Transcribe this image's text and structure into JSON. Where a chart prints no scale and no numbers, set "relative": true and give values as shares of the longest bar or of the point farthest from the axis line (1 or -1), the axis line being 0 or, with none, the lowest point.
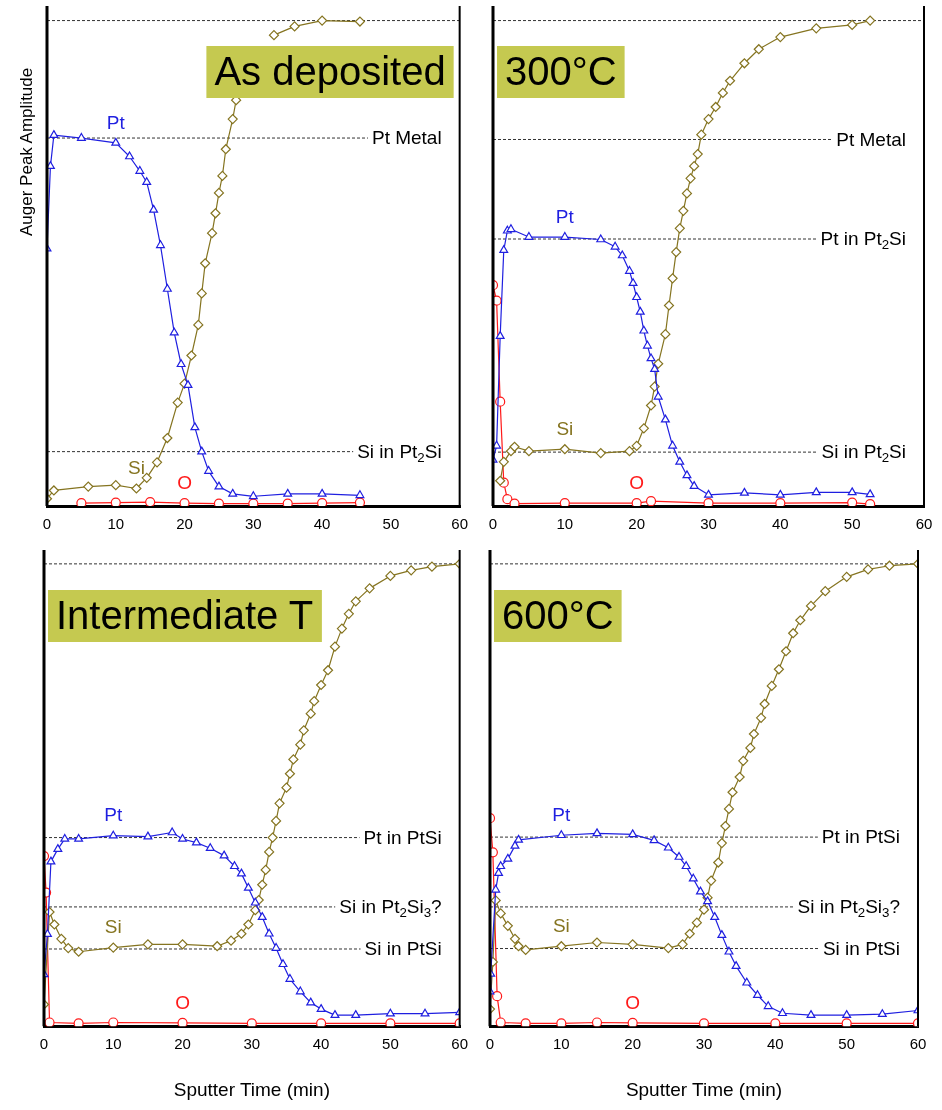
{
  "chart_data": [
    {
      "type": "line",
      "title": "As deposited",
      "ylabel": "Auger Peak Amplitude",
      "relative": true,
      "xlim": [
        0,
        60
      ],
      "xticks": [
        0,
        10,
        20,
        30,
        40,
        50,
        60
      ],
      "tick_labels": "x",
      "grid": false,
      "legend": false,
      "series": [
        {
          "name": "Pt",
          "color": "#1f1fe0",
          "marker": "triangle",
          "x": [
            0,
            0.5,
            1,
            5,
            10,
            12,
            13.5,
            14.5,
            15.5,
            16.5,
            17.5,
            18.5,
            19.5,
            20.5,
            21.5,
            22.5,
            23.5,
            25,
            27,
            30,
            35,
            40,
            45.5
          ],
          "values": [
            0.53,
            0.7,
            0.764,
            0.758,
            0.748,
            0.72,
            0.69,
            0.667,
            0.61,
            0.537,
            0.447,
            0.357,
            0.292,
            0.249,
            0.162,
            0.112,
            0.072,
            0.04,
            0.025,
            0.02,
            0.025,
            0.025,
            0.022
          ]
        },
        {
          "name": "Si",
          "color": "#857420",
          "marker": "diamond",
          "x": [
            0,
            1,
            6,
            10,
            13,
            14.5,
            16,
            17.5,
            19,
            20,
            21,
            22,
            22.5,
            23,
            24,
            24.5,
            25,
            25.5,
            26,
            27,
            27.5,
            29,
            31,
            33,
            36,
            40,
            45.5
          ],
          "values": [
            0.015,
            0.032,
            0.04,
            0.043,
            0.036,
            0.058,
            0.09,
            0.14,
            0.213,
            0.252,
            0.31,
            0.373,
            0.438,
            0.5,
            0.562,
            0.603,
            0.645,
            0.68,
            0.735,
            0.797,
            0.836,
            null,
            null,
            0.97,
            0.988,
            1,
            0.998
          ]
        },
        {
          "name": "O",
          "color": "#ff1a1a",
          "marker": "circle",
          "x": [
            5,
            10,
            15,
            20,
            25,
            30,
            35,
            40,
            45.5
          ],
          "values": [
            0.006,
            0.007,
            0.008,
            0.006,
            0.005,
            0.005,
            0.005,
            0.006,
            0.007
          ]
        }
      ],
      "ref_lines": [
        {
          "axis": "y",
          "value": 1,
          "label": null
        },
        {
          "axis": "y",
          "value": 0.758,
          "label": "Pt Metal"
        },
        {
          "axis": "y",
          "value": 0.112,
          "label": "Si in Pt$_{2}$Si"
        }
      ]
    },
    {
      "type": "line",
      "title": "300°C",
      "relative": true,
      "xlim": [
        0,
        60
      ],
      "xticks": [
        0,
        10,
        20,
        30,
        40,
        50,
        60
      ],
      "tick_labels": "x",
      "grid": false,
      "legend": false,
      "series": [
        {
          "name": "Pt",
          "color": "#1f1fe0",
          "marker": "triangle",
          "x": [
            0,
            0.5,
            1,
            1.5,
            2,
            2.5,
            5,
            10,
            15,
            17,
            18,
            19,
            19.5,
            20,
            20.5,
            21,
            21.5,
            22,
            22.5,
            23,
            24,
            25,
            26,
            27,
            28,
            30,
            35,
            40,
            45,
            50,
            52.5
          ],
          "values": [
            0.095,
            0.124,
            0.35,
            0.527,
            0.567,
            0.57,
            0.554,
            0.554,
            0.549,
            0.534,
            0.516,
            0.484,
            0.459,
            0.43,
            0.4,
            0.361,
            0.33,
            0.304,
            0.282,
            0.225,
            0.178,
            0.124,
            0.091,
            0.063,
            0.041,
            0.023,
            0.027,
            0.023,
            0.028,
            0.028,
            0.024
          ]
        },
        {
          "name": "Si",
          "color": "#857420",
          "marker": "diamond",
          "x": [
            1,
            1.5,
            2.5,
            3,
            5,
            10,
            15,
            19,
            20,
            21,
            22,
            22.5,
            23,
            24,
            24.5,
            25,
            25.5,
            26,
            26.5,
            27,
            27.5,
            28,
            28.5,
            29,
            30,
            31,
            32,
            33,
            35,
            37,
            40,
            45,
            50,
            52.5
          ],
          "values": [
            0.052,
            0.091,
            0.113,
            0.122,
            0.113,
            0.117,
            0.109,
            0.113,
            0.124,
            0.16,
            0.207,
            0.246,
            0.293,
            0.354,
            0.413,
            0.469,
            0.523,
            0.572,
            0.608,
            0.644,
            0.675,
            0.7,
            0.725,
            0.765,
            0.797,
            0.822,
            0.851,
            0.876,
            0.912,
            0.941,
            0.966,
            0.984,
            0.991,
            1
          ]
        },
        {
          "name": "O",
          "color": "#ff1a1a",
          "marker": "circle",
          "x": [
            0,
            0.5,
            1,
            1.5,
            2,
            3,
            10,
            20,
            22,
            30,
            40,
            50,
            52.5
          ],
          "values": [
            0.455,
            0.423,
            0.215,
            0.048,
            0.014,
            0.005,
            0.006,
            0.006,
            0.01,
            0.006,
            0.006,
            0.007,
            0.004
          ]
        }
      ],
      "ref_lines": [
        {
          "axis": "y",
          "value": 1,
          "label": null
        },
        {
          "axis": "y",
          "value": 0.755,
          "label": "Pt Metal"
        },
        {
          "axis": "y",
          "value": 0.55,
          "label": "Pt in Pt$_{2}$Si"
        },
        {
          "axis": "y",
          "value": 0.111,
          "label": "Si in Pt$_{2}$Si"
        }
      ]
    },
    {
      "type": "line",
      "title": "Intermediate T",
      "xlabel": "Sputter Time (min)",
      "relative": true,
      "xlim": [
        0,
        60
      ],
      "xticks": [
        0,
        10,
        20,
        30,
        40,
        50,
        60
      ],
      "tick_labels": "x",
      "grid": false,
      "legend": false,
      "series": [
        {
          "name": "Pt",
          "color": "#1f1fe0",
          "marker": "triangle",
          "x": [
            0,
            0.5,
            1,
            2,
            3,
            5,
            10,
            15,
            18.5,
            20,
            22,
            24,
            26,
            27.5,
            28.5,
            29.5,
            30.5,
            31.5,
            32.5,
            33.5,
            34.5,
            35.5,
            37,
            38.5,
            40,
            42,
            45,
            50,
            55,
            60
          ],
          "values": [
            0.112,
            0.199,
            0.356,
            0.383,
            0.405,
            0.405,
            0.412,
            0.41,
            0.419,
            0.405,
            0.397,
            0.385,
            0.369,
            0.346,
            0.33,
            0.299,
            0.267,
            0.236,
            0.2,
            0.169,
            0.134,
            0.102,
            0.075,
            0.051,
            0.037,
            0.024,
            0.024,
            0.027,
            0.027,
            0.03
          ]
        },
        {
          "name": "Si",
          "color": "#857420",
          "marker": "diamond",
          "x": [
            0,
            0.8,
            1.5,
            2.5,
            3.5,
            5,
            10,
            15,
            20,
            25,
            27,
            28.5,
            29.5,
            30.5,
            31,
            31.5,
            32,
            32.5,
            33,
            33.5,
            34,
            35,
            35.5,
            36,
            37,
            37.5,
            38.5,
            39,
            40,
            41,
            42,
            43,
            44,
            45,
            47,
            50,
            53,
            56,
            60
          ],
          "values": [
            0.047,
            0.247,
            0.22,
            0.189,
            0.169,
            0.161,
            0.17,
            0.177,
            0.177,
            0.173,
            0.185,
            0.2,
            0.22,
            0.251,
            0.273,
            0.306,
            0.338,
            0.377,
            0.408,
            0.444,
            0.482,
            0.516,
            0.546,
            0.577,
            0.609,
            0.64,
            0.676,
            0.703,
            0.738,
            0.77,
            0.821,
            0.86,
            0.892,
            0.919,
            0.947,
            0.974,
            0.986,
            0.994,
            1
          ]
        },
        {
          "name": "O",
          "color": "#ff1a1a",
          "marker": "circle",
          "x": [
            0,
            0.3,
            0.8,
            5,
            10,
            20,
            30,
            40,
            50,
            60
          ],
          "values": [
            0.368,
            0.289,
            0.008,
            0.006,
            0.008,
            0.007,
            0.006,
            0.006,
            0.006,
            0.006
          ]
        }
      ],
      "ref_lines": [
        {
          "axis": "y",
          "value": 1,
          "label": null
        },
        {
          "axis": "y",
          "value": 0.408,
          "label": "Pt in PtSi"
        },
        {
          "axis": "y",
          "value": 0.258,
          "label": "Si in Pt$_{2}$Si$_{3}$?"
        },
        {
          "axis": "y",
          "value": 0.167,
          "label": "Si in PtSi"
        }
      ]
    },
    {
      "type": "line",
      "title": "600°C",
      "xlabel": "Sputter Time (min)",
      "relative": true,
      "xlim": [
        0,
        60
      ],
      "xticks": [
        0,
        10,
        20,
        30,
        40,
        50,
        60
      ],
      "tick_labels": "x",
      "grid": false,
      "legend": false,
      "series": [
        {
          "name": "Pt",
          "color": "#1f1fe0",
          "marker": "triangle",
          "x": [
            0,
            0.1,
            0.8,
            1.2,
            1.5,
            2.5,
            3.5,
            4,
            10,
            15,
            20,
            23,
            25,
            26.5,
            27.5,
            28.5,
            29.5,
            30.5,
            31.5,
            32.5,
            33.5,
            34.5,
            36,
            37.5,
            39,
            41,
            45,
            50,
            55,
            60
          ],
          "values": [
            0.075,
            0.113,
            0.295,
            0.331,
            0.346,
            0.362,
            0.39,
            0.403,
            0.413,
            0.417,
            0.415,
            0.402,
            0.386,
            0.366,
            0.346,
            0.319,
            0.291,
            0.27,
            0.236,
            0.197,
            0.161,
            0.13,
            0.094,
            0.067,
            0.043,
            0.028,
            0.024,
            0.024,
            0.026,
            0.034
          ]
        },
        {
          "name": "Si",
          "color": "#857420",
          "marker": "diamond",
          "x": [
            0,
            0.4,
            0.8,
            1.5,
            2.5,
            3.5,
            4,
            5,
            10,
            15,
            20,
            25,
            27,
            28,
            29,
            30,
            30.5,
            31,
            32,
            32.5,
            33,
            33.5,
            34,
            35,
            35.5,
            36.5,
            37,
            38,
            38.5,
            39.5,
            40.5,
            41.5,
            42.5,
            43.5,
            45,
            47,
            50,
            53,
            56,
            60
          ],
          "values": [
            0.037,
            0.139,
            0.272,
            0.244,
            0.217,
            0.189,
            0.173,
            0.165,
            0.173,
            0.181,
            0.177,
            0.169,
            0.177,
            0.2,
            0.224,
            0.252,
            0.278,
            0.315,
            0.354,
            0.396,
            0.433,
            0.47,
            0.506,
            0.539,
            0.574,
            0.602,
            0.632,
            0.667,
            0.697,
            0.736,
            0.772,
            0.811,
            0.85,
            0.878,
            0.909,
            0.941,
            0.972,
            0.988,
            0.996,
            1
          ]
        },
        {
          "name": "O",
          "color": "#ff1a1a",
          "marker": "circle",
          "x": [
            0,
            0.4,
            1,
            1.5,
            5,
            10,
            15,
            20,
            30,
            40,
            50,
            60
          ],
          "values": [
            0.45,
            0.376,
            0.065,
            0.008,
            0.006,
            0.006,
            0.008,
            0.007,
            0.006,
            0.006,
            0.006,
            0.006
          ]
        }
      ],
      "ref_lines": [
        {
          "axis": "y",
          "value": 1,
          "label": null
        },
        {
          "axis": "y",
          "value": 0.409,
          "label": "Pt in PtSi"
        },
        {
          "axis": "y",
          "value": 0.258,
          "label": "Si in Pt$_{2}$Si$_{3}$?"
        },
        {
          "axis": "y",
          "value": 0.168,
          "label": "Si in PtSi"
        }
      ]
    }
  ]
}
